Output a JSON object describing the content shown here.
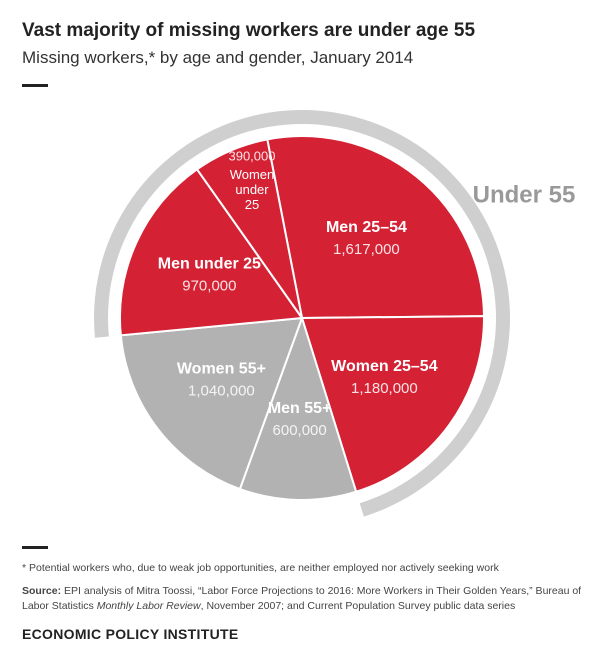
{
  "chart_data": {
    "type": "pie",
    "title": "Vast majority of missing workers are under age 55",
    "subtitle": "Missing workers,* by age and gender, January 2014",
    "categories": [
      "Men 25–54",
      "Women 25–54",
      "Men 55+",
      "Women 55+",
      "Men under 25",
      "Women under 25"
    ],
    "values": [
      1617000,
      1180000,
      600000,
      1040000,
      970000,
      390000
    ],
    "value_labels": [
      "1,617,000",
      "1,180,000",
      "600,000",
      "1,040,000",
      "970,000",
      "390,000"
    ],
    "colors": [
      "#d42134",
      "#d42134",
      "#b2b2b2",
      "#b2b2b2",
      "#d42134",
      "#d42134"
    ],
    "annotation": "Under 55"
  },
  "footnote": "* Potential workers who, due to weak job opportunities, are neither employed nor actively seeking work",
  "source": {
    "label": "Source:",
    "text1": "EPI analysis of Mitra Toossi, “Labor Force Projections to 2016: More Workers in Their Golden Years,” Bureau of Labor Statistics",
    "italic": "Monthly Labor Review",
    "text2": ", November 2007; and Current Population Survey public data series"
  },
  "brand": "ECONOMIC POLICY INSTITUTE"
}
